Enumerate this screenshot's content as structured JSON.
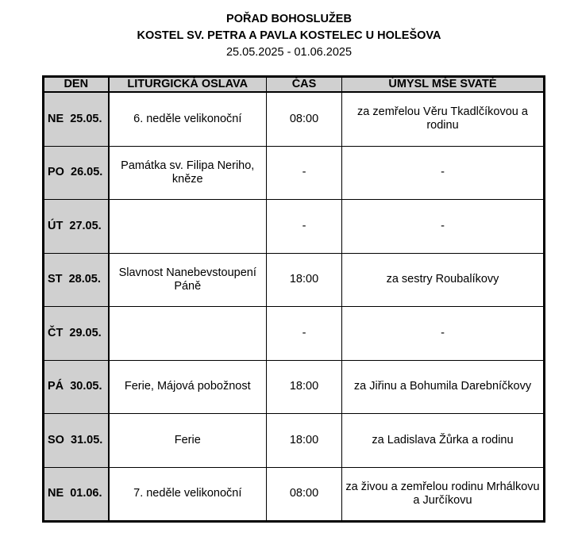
{
  "title": "POŘAD BOHOSLUŽEB",
  "subtitle": "KOSTEL SV. PETRA A PAVLA KOSTELEC U HOLEŠOVA",
  "dates": "25.05.2025 - 01.06.2025",
  "columns": [
    "DEN",
    "LITURGICKÁ OSLAVA",
    "ČAS",
    "ÚMYSL MŠE SVATÉ"
  ],
  "rows": [
    {
      "day": "NE  25.05.",
      "celebration": "6. neděle velikonoční",
      "time": "08:00",
      "intention": "za zemřelou Věru Tkadlčíkovou a rodinu"
    },
    {
      "day": "PO  26.05.",
      "celebration": "Památka sv. Filipa Neriho, kněze",
      "time": "-",
      "intention": "-"
    },
    {
      "day": "ÚT  27.05.",
      "celebration": "",
      "time": "-",
      "intention": "-"
    },
    {
      "day": "ST  28.05.",
      "celebration": "Slavnost Nanebevstoupení Páně",
      "time": "18:00",
      "intention": "za sestry Roubalíkovy"
    },
    {
      "day": "ČT  29.05.",
      "celebration": "",
      "time": "-",
      "intention": "-"
    },
    {
      "day": "PÁ  30.05.",
      "celebration": "Ferie, Májová pobožnost",
      "time": "18:00",
      "intention": "za Jiřinu a Bohumila Darebníčkovy"
    },
    {
      "day": "SO  31.05.",
      "celebration": "Ferie",
      "time": "18:00",
      "intention": "za Ladislava Žůrka a rodinu"
    },
    {
      "day": "NE  01.06.",
      "celebration": "7. neděle velikonoční",
      "time": "08:00",
      "intention": "za živou a zemřelou rodinu Mrhálkovu a Jurčíkovu"
    }
  ]
}
